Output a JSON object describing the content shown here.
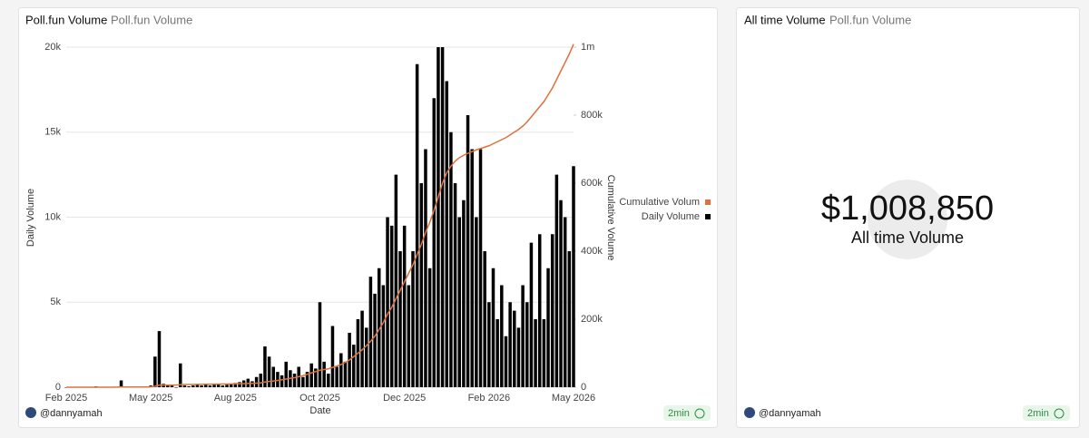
{
  "left_panel": {
    "author": "@dannyamah",
    "refresh": "2min"
  },
  "right_panel": {
    "title": "All time Volume",
    "subtitle": "Poll.fun Volume",
    "counter": "$1,008,850",
    "counter_label": "All time Volume",
    "author": "@dannyamah",
    "refresh": "2min"
  },
  "chart_data": {
    "type": "combo",
    "title": "Poll.fun Volume",
    "subtitle": "Poll.fun Volume",
    "x_label": "Date",
    "y_label": "Daily Volume",
    "y2_label": "Cumulative Volume",
    "categories": [
      "Feb 2025",
      null,
      null,
      null,
      null,
      null,
      null,
      null,
      null,
      null,
      null,
      null,
      null,
      null,
      null,
      null,
      null,
      null,
      null,
      null,
      "May 2025",
      null,
      null,
      null,
      null,
      null,
      null,
      null,
      null,
      null,
      null,
      null,
      null,
      null,
      null,
      null,
      null,
      null,
      null,
      null,
      "Aug 2025",
      null,
      null,
      null,
      null,
      null,
      null,
      null,
      null,
      null,
      null,
      null,
      null,
      null,
      null,
      null,
      null,
      null,
      null,
      null,
      "Oct 2025",
      null,
      null,
      null,
      null,
      null,
      null,
      null,
      null,
      null,
      null,
      null,
      null,
      null,
      null,
      null,
      null,
      null,
      null,
      null,
      "Dec 2025",
      null,
      null,
      null,
      null,
      null,
      null,
      null,
      null,
      null,
      null,
      null,
      null,
      null,
      null,
      null,
      null,
      null,
      null,
      null,
      "Feb 2026",
      null,
      null,
      null,
      null,
      null,
      null,
      null,
      null,
      null,
      null,
      null,
      null,
      null,
      null,
      null,
      null,
      null,
      null,
      null,
      "May 2026"
    ],
    "series": [
      {
        "name": "Cumulative Volum",
        "type": "line",
        "axis": "y2",
        "color": "#e0703c",
        "values": [
          0,
          0,
          0,
          0,
          0,
          0,
          0,
          0,
          100,
          100,
          100,
          100,
          200,
          600,
          600,
          600,
          700,
          700,
          800,
          800,
          900,
          2700,
          6000,
          6200,
          6300,
          6400,
          6400,
          7800,
          7900,
          8000,
          8100,
          8300,
          8400,
          8600,
          8700,
          8900,
          9100,
          9200,
          9400,
          9600,
          9900,
          10200,
          10600,
          11100,
          11500,
          12100,
          12900,
          15300,
          17100,
          18300,
          20000,
          22000,
          24000,
          26000,
          28000,
          31000,
          34000,
          38000,
          42000,
          46000,
          50000,
          52000,
          54000,
          58000,
          62000,
          67000,
          73000,
          80000,
          90000,
          100000,
          110000,
          122000,
          135000,
          150000,
          170000,
          190000,
          215000,
          235000,
          260000,
          285000,
          310000,
          335000,
          360000,
          390000,
          420000,
          455000,
          485000,
          520000,
          560000,
          600000,
          630000,
          650000,
          665000,
          675000,
          682000,
          688000,
          693000,
          698000,
          702000,
          706000,
          710000,
          716000,
          722000,
          728000,
          734000,
          742000,
          750000,
          758000,
          768000,
          780000,
          795000,
          810000,
          825000,
          840000,
          860000,
          880000,
          905000,
          930000,
          955000,
          980000,
          1008850
        ]
      },
      {
        "name": "Daily Volume",
        "type": "bar",
        "axis": "y",
        "color": "#000000",
        "values": [
          0,
          0,
          0,
          0,
          0,
          0,
          0,
          50,
          0,
          0,
          0,
          0,
          30,
          400,
          0,
          0,
          0,
          0,
          0,
          0,
          100,
          1800,
          3300,
          200,
          100,
          100,
          0,
          1400,
          100,
          50,
          100,
          150,
          100,
          200,
          100,
          150,
          200,
          100,
          150,
          200,
          250,
          300,
          400,
          500,
          350,
          600,
          800,
          2400,
          1800,
          1200,
          900,
          700,
          1500,
          1000,
          800,
          1200,
          600,
          900,
          1400,
          1100,
          5000,
          1500,
          800,
          3600,
          1200,
          2000,
          1500,
          3200,
          2500,
          4000,
          4500,
          3500,
          6500,
          5500,
          7000,
          6000,
          10000,
          9500,
          12500,
          8000,
          9500,
          6000,
          8000,
          19000,
          12000,
          14000,
          7000,
          17000,
          20000,
          20000,
          18000,
          15000,
          12000,
          10000,
          11000,
          16000,
          14000,
          10000,
          14000,
          8000,
          5000,
          7000,
          4000,
          6000,
          3000,
          5000,
          4500,
          3500,
          6000,
          5000,
          8500,
          4000,
          9000,
          4000,
          7000,
          9000,
          12500,
          11000,
          10000,
          8000,
          13000
        ]
      }
    ],
    "ylim": [
      0,
      20000
    ],
    "yticks": [
      0,
      {
        "value": 5000,
        "label": "5k"
      },
      {
        "value": 10000,
        "label": "10k"
      },
      {
        "value": 15000,
        "label": "15k"
      },
      {
        "value": 20000,
        "label": "20k"
      }
    ],
    "y2lim": [
      0,
      1000000
    ],
    "y2ticks": [
      0,
      {
        "value": 200000,
        "label": "200k"
      },
      {
        "value": 400000,
        "label": "400k"
      },
      {
        "value": 600000,
        "label": "600k"
      },
      {
        "value": 800000,
        "label": "800k"
      },
      {
        "value": 1000000,
        "label": "1m"
      }
    ],
    "grid": true,
    "legend": "right"
  }
}
